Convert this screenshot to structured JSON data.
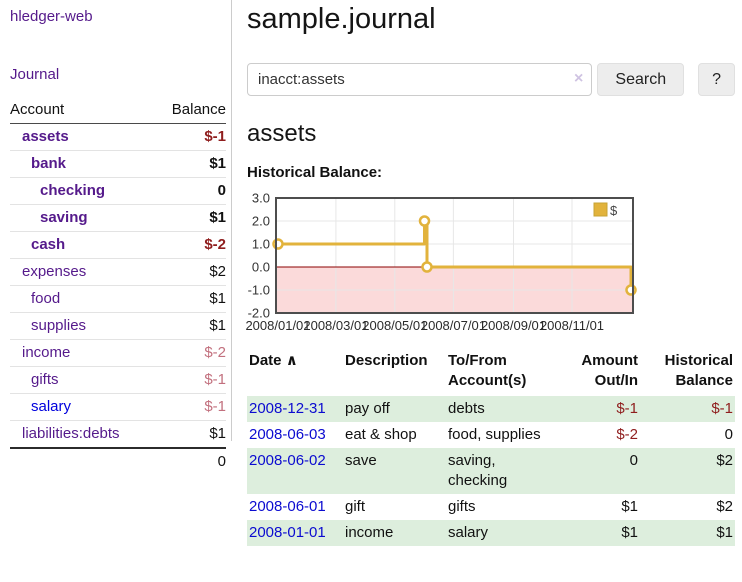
{
  "app": {
    "title": "hledger-web",
    "nav": {
      "journal": "Journal"
    }
  },
  "sidebar": {
    "table": {
      "headers": {
        "account": "Account",
        "balance": "Balance"
      },
      "rows": [
        {
          "name": "assets",
          "balance": "$-1",
          "level": 1,
          "emphasis": true,
          "negative": "strong"
        },
        {
          "name": "bank",
          "balance": "$1",
          "level": 2,
          "emphasis": true,
          "negative": "none"
        },
        {
          "name": "checking",
          "balance": "0",
          "level": 3,
          "emphasis": true,
          "negative": "none"
        },
        {
          "name": "saving",
          "balance": "$1",
          "level": 3,
          "emphasis": true,
          "negative": "none"
        },
        {
          "name": "cash",
          "balance": "$-2",
          "level": 2,
          "emphasis": true,
          "negative": "strong"
        },
        {
          "name": "expenses",
          "balance": "$2",
          "level": 1,
          "emphasis": false,
          "negative": "none"
        },
        {
          "name": "food",
          "balance": "$1",
          "level": 2,
          "emphasis": false,
          "negative": "none"
        },
        {
          "name": "supplies",
          "balance": "$1",
          "level": 2,
          "emphasis": false,
          "negative": "none"
        },
        {
          "name": "income",
          "balance": "$-2",
          "level": 1,
          "emphasis": false,
          "negative": "dim"
        },
        {
          "name": "gifts",
          "balance": "$-1",
          "level": 2,
          "emphasis": false,
          "negative": "dim"
        },
        {
          "name": "salary",
          "balance": "$-1",
          "level": 2,
          "emphasis": false,
          "negative": "dim"
        },
        {
          "name": "liabilities:debts",
          "balance": "$1",
          "level": 1,
          "emphasis": false,
          "negative": "none"
        }
      ],
      "total": "0"
    }
  },
  "main": {
    "title": "sample.journal",
    "search": {
      "value": "inacct:assets",
      "clear_icon": "×",
      "button": "Search",
      "help_button": "?"
    },
    "heading": "assets",
    "chart_title": "Historical Balance:",
    "register": {
      "headers": {
        "date": "Date",
        "sort_icon": "∧",
        "description": "Description",
        "tofrom_line1": "To/From",
        "tofrom_line2": "Account(s)",
        "amount_line1": "Amount",
        "amount_line2": "Out/In",
        "balance_line1": "Historical",
        "balance_line2": "Balance"
      },
      "rows": [
        {
          "date": "2008-12-31",
          "description": "pay off",
          "tofrom": "debts",
          "amount": "$-1",
          "balance": "$-1"
        },
        {
          "date": "2008-06-03",
          "description": "eat & shop",
          "tofrom": "food, supplies",
          "amount": "$-2",
          "balance": "0"
        },
        {
          "date": "2008-06-02",
          "description": "save",
          "tofrom": "saving, checking",
          "amount": "0",
          "balance": "$2"
        },
        {
          "date": "2008-06-01",
          "description": "gift",
          "tofrom": "gifts",
          "amount": "$1",
          "balance": "$2"
        },
        {
          "date": "2008-01-01",
          "description": "income",
          "tofrom": "salary",
          "amount": "$1",
          "balance": "$1"
        }
      ]
    }
  },
  "chart_data": {
    "type": "line",
    "style": "step-post",
    "title": "Historical Balance:",
    "legend": {
      "label": "$",
      "position": "top-right"
    },
    "ylim": [
      -2.0,
      3.0
    ],
    "yticks": [
      3.0,
      2.0,
      1.0,
      0.0,
      -1.0,
      -2.0
    ],
    "ytick_labels": [
      "3.0",
      "2.0",
      "1.0",
      "0.0",
      "-1.0",
      "-2.0"
    ],
    "xticks": [
      {
        "label": "2008/01/01",
        "t": 0.0
      },
      {
        "label": "2008/03/01",
        "t": 0.164
      },
      {
        "label": "2008/05/01",
        "t": 0.331
      },
      {
        "label": "2008/07/01",
        "t": 0.497
      },
      {
        "label": "2008/09/01",
        "t": 0.667
      },
      {
        "label": "2008/11/01",
        "t": 0.833
      }
    ],
    "series": [
      {
        "name": "$",
        "points": [
          {
            "date": "2008-01-01",
            "t": 0.0,
            "value": 1
          },
          {
            "date": "2008-06-01",
            "t": 0.415,
            "value": 2
          },
          {
            "date": "2008-06-03",
            "t": 0.422,
            "value": 0
          },
          {
            "date": "2008-12-31",
            "t": 1.0,
            "value": -1
          }
        ]
      }
    ],
    "grid": true,
    "line_color": "#e2b33c",
    "zero_line_color": "#8b0000",
    "negative_region_color": "#fbdada"
  },
  "colors": {
    "link_purple": "#551a8b",
    "link_blue": "#0000dd",
    "date_link_blue": "#0b0bd0",
    "negative": "#8f1d1d",
    "negative_dim": "#c2707e",
    "row_stripe_green": "#ddeedd",
    "chart_line_gold": "#e2b33c"
  }
}
